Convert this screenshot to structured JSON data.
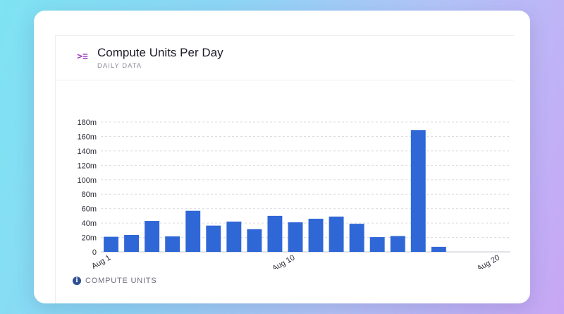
{
  "header": {
    "icon": "code-list-icon",
    "title": "Compute Units Per Day",
    "subtitle": "DAILY DATA"
  },
  "legend": {
    "icon": "info-icon",
    "label": "COMPUTE UNITS"
  },
  "colors": {
    "bar": "#2f67d6",
    "accent": "#a23fc4"
  },
  "chart_data": {
    "type": "bar",
    "title": "Compute Units Per Day",
    "subtitle": "DAILY DATA",
    "xlabel": "",
    "ylabel": "",
    "x_tick_labels": [
      "Aug 1",
      "Aug 10",
      "Aug 20"
    ],
    "y_tick_labels": [
      "0",
      "20m",
      "40m",
      "60m",
      "80m",
      "100m",
      "120m",
      "140m",
      "160m",
      "180m"
    ],
    "ylim": [
      0,
      180000000
    ],
    "grid": true,
    "legend": [
      "COMPUTE UNITS"
    ],
    "legend_position": "bottom-left",
    "categories": [
      "Aug 1",
      "Aug 2",
      "Aug 3",
      "Aug 4",
      "Aug 5",
      "Aug 6",
      "Aug 7",
      "Aug 8",
      "Aug 9",
      "Aug 10",
      "Aug 11",
      "Aug 12",
      "Aug 13",
      "Aug 14",
      "Aug 15",
      "Aug 16",
      "Aug 17",
      "Aug 18",
      "Aug 19",
      "Aug 20"
    ],
    "series": [
      {
        "name": "COMPUTE UNITS",
        "values": [
          21000000,
          23500000,
          43000000,
          21500000,
          57000000,
          36500000,
          42000000,
          31500000,
          50000000,
          41000000,
          46000000,
          49000000,
          39000000,
          20500000,
          22000000,
          169000000,
          7000000,
          null,
          null,
          null
        ]
      }
    ]
  }
}
